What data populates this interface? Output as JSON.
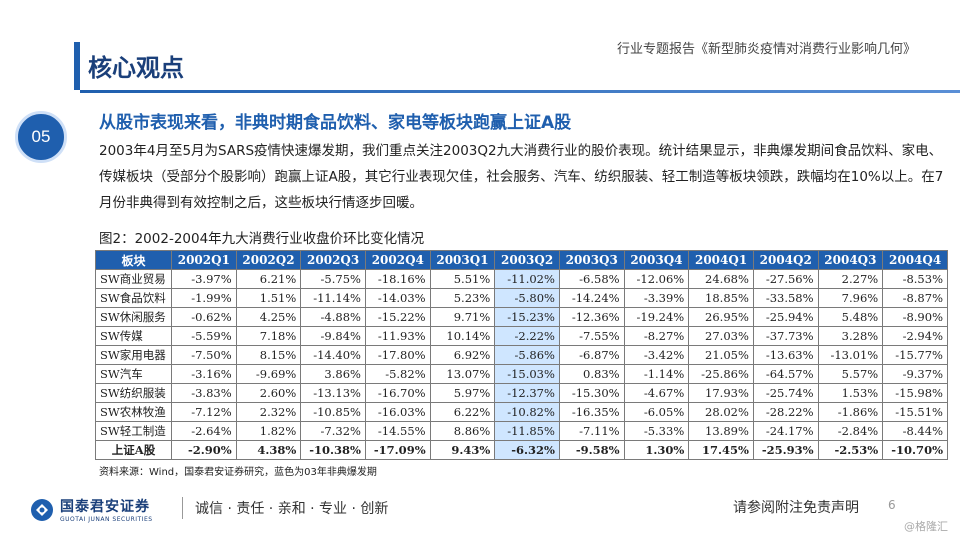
{
  "header": {
    "page_title": "核心观点",
    "report_title": "行业专题报告《新型肺炎疫情对消费行业影响几何》"
  },
  "badge": "05",
  "section": {
    "heading": "从股市表现来看，非典时期食品饮料、家电等板块跑赢上证A股",
    "body": "2003年4月至5月为SARS疫情快速爆发期，我们重点关注2003Q2九大消费行业的股价表现。统计结果显示，非典爆发期间食品饮料、家电、传媒板块（受部分个股影响）跑赢上证A股，其它行业表现欠佳，社会服务、汽车、纺织服装、轻工制造等板块领跌，跌幅均在10%以上。在7月份非典得到有效控制之后，这些板块行情逐步回暖。"
  },
  "figure": {
    "caption": "图2：2002-2004年九大消费行业收盘价环比变化情况",
    "highlight_color": "#cfe6ff",
    "header_color": "#1f5fae",
    "columns": [
      "板块",
      "2002Q1",
      "2002Q2",
      "2002Q3",
      "2002Q4",
      "2003Q1",
      "2003Q2",
      "2003Q3",
      "2003Q4",
      "2004Q1",
      "2004Q2",
      "2004Q3",
      "2004Q4"
    ],
    "rows": [
      {
        "sector": "SW商业贸易",
        "values": [
          "-3.97%",
          "6.21%",
          "-5.75%",
          "-18.16%",
          "5.51%",
          "-11.02%",
          "-6.58%",
          "-12.06%",
          "24.68%",
          "-27.56%",
          "2.27%",
          "-8.53%"
        ]
      },
      {
        "sector": "SW食品饮料",
        "values": [
          "-1.99%",
          "1.51%",
          "-11.14%",
          "-14.03%",
          "5.23%",
          "-5.80%",
          "-14.24%",
          "-3.39%",
          "18.85%",
          "-33.58%",
          "7.96%",
          "-8.87%"
        ]
      },
      {
        "sector": "SW休闲服务",
        "values": [
          "-0.62%",
          "4.25%",
          "-4.88%",
          "-15.22%",
          "9.71%",
          "-15.23%",
          "-12.36%",
          "-19.24%",
          "26.95%",
          "-25.94%",
          "5.48%",
          "-8.90%"
        ]
      },
      {
        "sector": "SW传媒",
        "values": [
          "-5.59%",
          "7.18%",
          "-9.84%",
          "-11.93%",
          "10.14%",
          "-2.22%",
          "-7.55%",
          "-8.27%",
          "27.03%",
          "-37.73%",
          "3.28%",
          "-2.94%"
        ]
      },
      {
        "sector": "SW家用电器",
        "values": [
          "-7.50%",
          "8.15%",
          "-14.40%",
          "-17.80%",
          "6.92%",
          "-5.86%",
          "-6.87%",
          "-3.42%",
          "21.05%",
          "-13.63%",
          "-13.01%",
          "-15.77%"
        ]
      },
      {
        "sector": "SW汽车",
        "values": [
          "-3.16%",
          "-9.69%",
          "3.86%",
          "-5.82%",
          "13.07%",
          "-15.03%",
          "0.83%",
          "-1.14%",
          "-25.86%",
          "-64.57%",
          "5.57%",
          "-9.37%"
        ]
      },
      {
        "sector": "SW纺织服装",
        "values": [
          "-3.83%",
          "2.60%",
          "-13.13%",
          "-16.70%",
          "5.97%",
          "-12.37%",
          "-15.30%",
          "-4.67%",
          "17.93%",
          "-25.74%",
          "1.53%",
          "-15.98%"
        ]
      },
      {
        "sector": "SW农林牧渔",
        "values": [
          "-7.12%",
          "2.32%",
          "-10.85%",
          "-16.03%",
          "6.22%",
          "-10.82%",
          "-16.35%",
          "-6.05%",
          "28.02%",
          "-28.22%",
          "-1.86%",
          "-15.51%"
        ]
      },
      {
        "sector": "SW轻工制造",
        "values": [
          "-2.64%",
          "1.82%",
          "-7.32%",
          "-14.55%",
          "8.86%",
          "-11.85%",
          "-7.11%",
          "-5.33%",
          "13.89%",
          "-24.17%",
          "-2.84%",
          "-8.44%"
        ]
      },
      {
        "sector": "上证A股",
        "values": [
          "-2.90%",
          "4.38%",
          "-10.38%",
          "-17.09%",
          "9.43%",
          "-6.32%",
          "-9.58%",
          "1.30%",
          "17.45%",
          "-25.93%",
          "-2.53%",
          "-10.70%"
        ],
        "bold": true
      }
    ],
    "source": "资料来源：Wind，国泰君安证券研究，蓝色为03年非典爆发期"
  },
  "footer": {
    "logo_cn": "国泰君安证券",
    "logo_en": "GUOTAI JUNAN SECURITIES",
    "slogan": "诚信 · 责任 · 亲和 · 专业 · 创新",
    "disclaimer": "请参阅附注免责声明",
    "page_number": "6",
    "watermark": "@格隆汇"
  }
}
